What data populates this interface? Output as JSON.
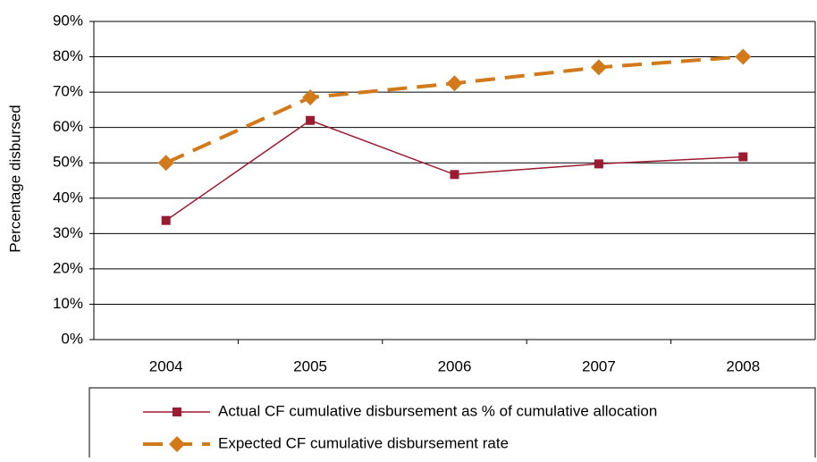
{
  "chart_data": {
    "type": "line",
    "y_label": "Percentage disbursed",
    "categories": [
      "2004",
      "2005",
      "2006",
      "2007",
      "2008"
    ],
    "series": [
      {
        "name": "Actual CF cumulative disbursement as % of cumulative allocation",
        "color": "#9b1b30",
        "marker": "square",
        "dashed": false,
        "values": [
          33.7,
          62,
          46.7,
          49.7,
          51.7
        ]
      },
      {
        "name": "Expected CF cumulative disbursement rate",
        "color": "#d2791a",
        "marker": "diamond",
        "dashed": true,
        "values": [
          50,
          68.5,
          72.5,
          77,
          80
        ]
      }
    ],
    "ylim": [
      0,
      90
    ],
    "yticks": [
      {
        "value": 0,
        "label": "0%"
      },
      {
        "value": 10,
        "label": "10%"
      },
      {
        "value": 20,
        "label": "20%"
      },
      {
        "value": 30,
        "label": "30%"
      },
      {
        "value": 40,
        "label": "40%"
      },
      {
        "value": 50,
        "label": "50%"
      },
      {
        "value": 60,
        "label": "60%"
      },
      {
        "value": 70,
        "label": "70%"
      },
      {
        "value": 80,
        "label": "80%"
      },
      {
        "value": 90,
        "label": "90%"
      }
    ],
    "grid": true,
    "legend": "bottom"
  }
}
